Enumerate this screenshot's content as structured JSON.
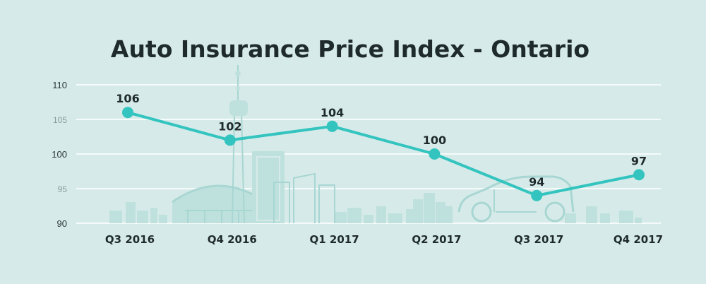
{
  "chart_data": {
    "type": "line",
    "title": "Auto Insurance Price Index - Ontario",
    "xlabel": "",
    "ylabel": "",
    "categories": [
      "Q3 2016",
      "Q4 2016",
      "Q1 2017",
      "Q2 2017",
      "Q3 2017",
      "Q4 2017"
    ],
    "series": [
      {
        "values": [
          106,
          102,
          104,
          100,
          94,
          97
        ],
        "color": "#34c4bf"
      }
    ],
    "data_labels": [
      "106",
      "102",
      "104",
      "100",
      "94",
      "97"
    ],
    "yticks": [
      90,
      95,
      100,
      105,
      110
    ],
    "ylim": [
      90,
      110
    ],
    "grid": true,
    "legend": "none",
    "background": "#d6ebe9"
  }
}
